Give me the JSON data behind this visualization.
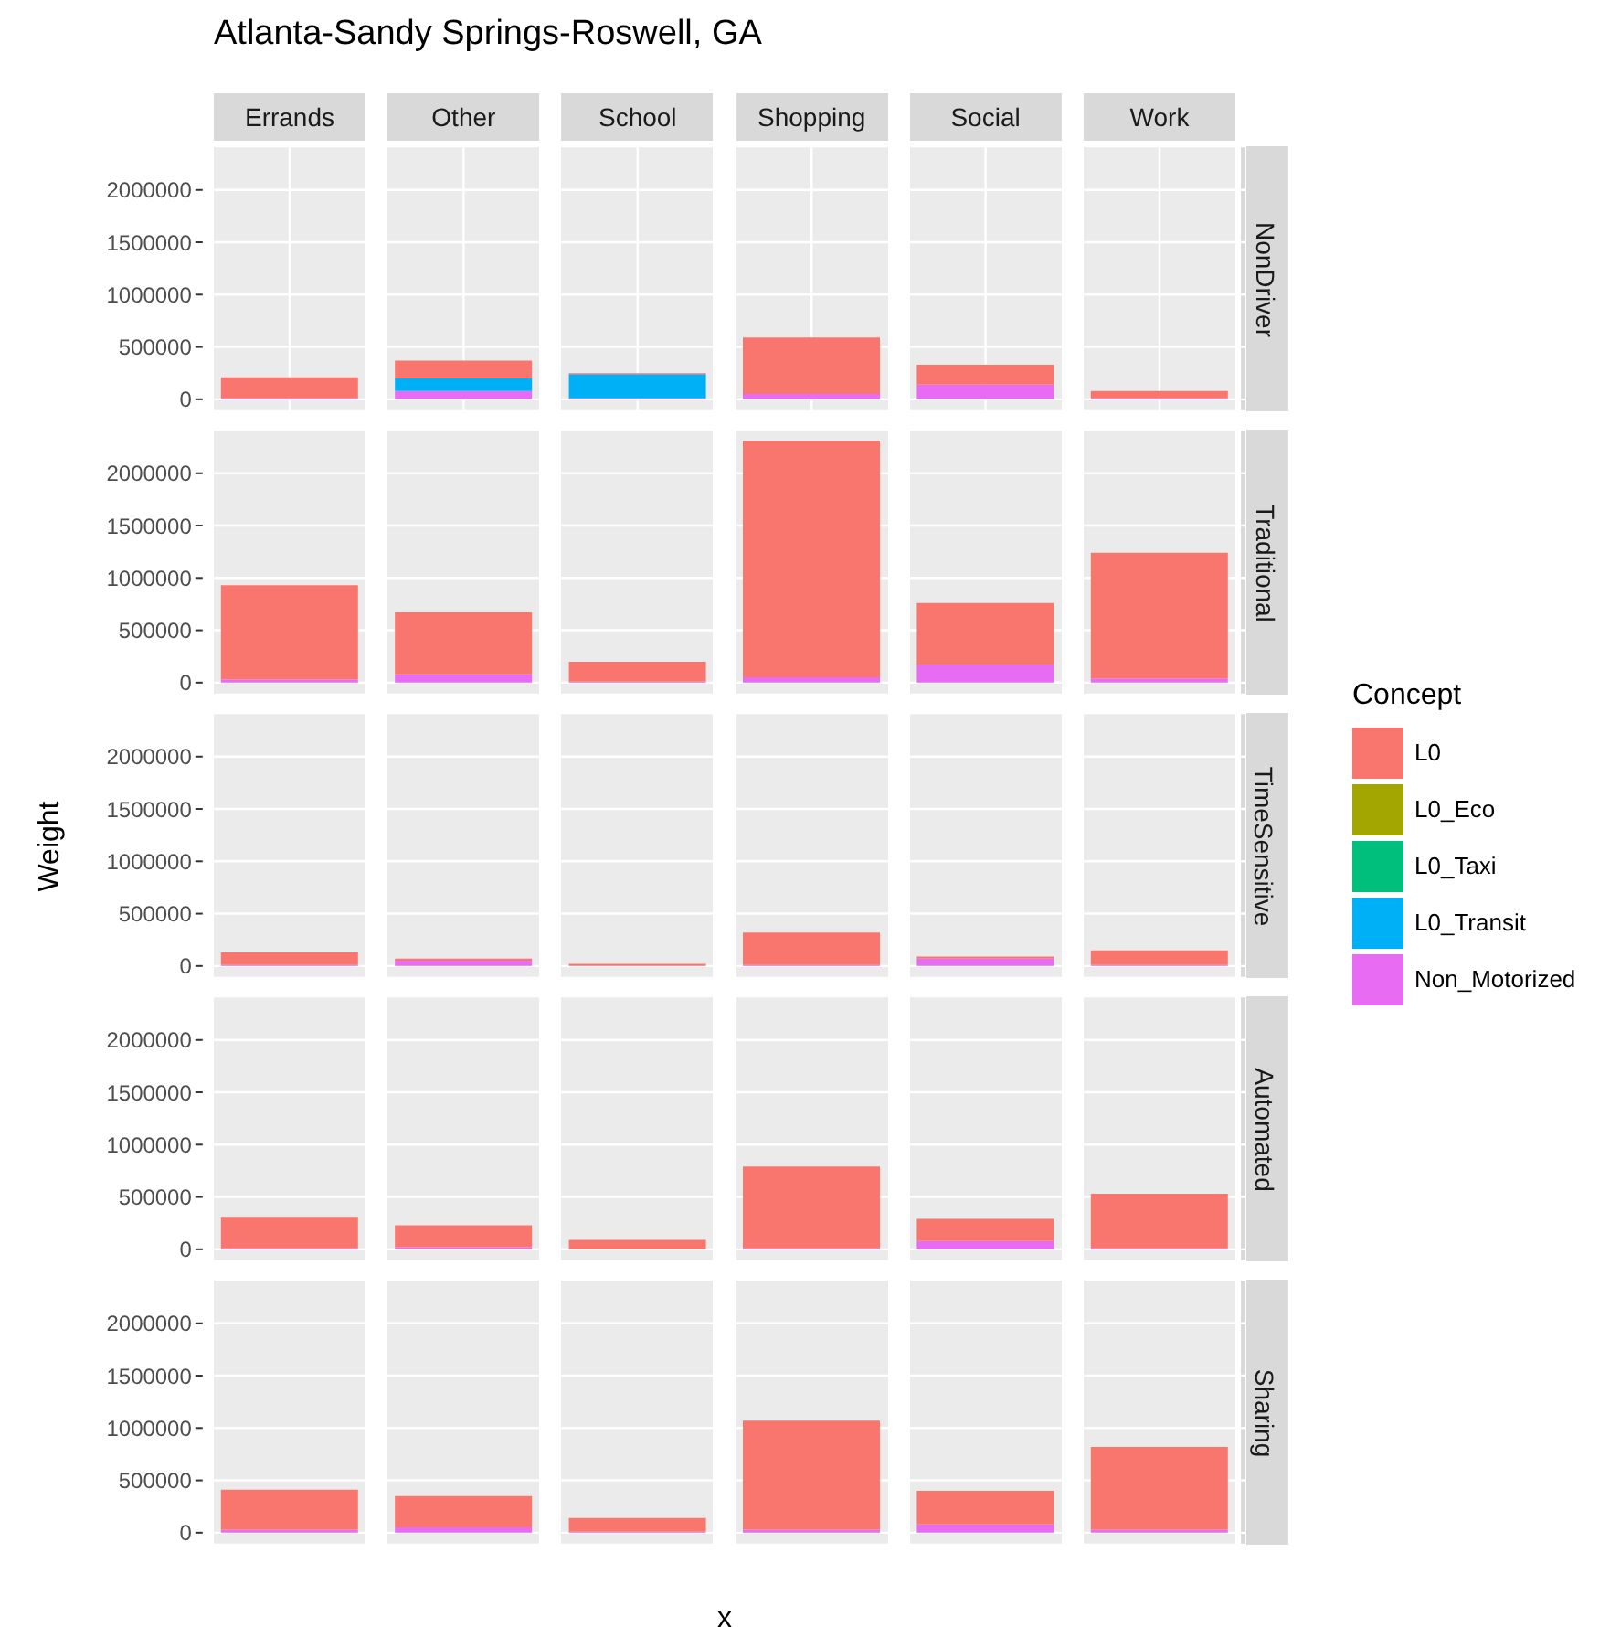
{
  "chart_data": [
    {
      "type": "bar",
      "stacked": true,
      "title": "Atlanta-Sandy Springs-Roswell, GA",
      "y2label": "NonDriver",
      "legend": "right",
      "legend_title": "Concept",
      "categories": [
        "Errands",
        "Other",
        "School",
        "Shopping",
        "Social",
        "Work"
      ],
      "ylim": [
        -115000,
        2417000
      ],
      "yticks": [
        0,
        500000,
        1000000,
        1500000,
        2000000
      ],
      "grid": true,
      "series": [
        {
          "name": "Non_Motorized",
          "color": "#e76bf3",
          "values": [
            10000,
            80000,
            10000,
            50000,
            140000,
            10000
          ]
        },
        {
          "name": "L0_Transit",
          "color": "#00b0f6",
          "values": [
            null,
            120000,
            230000,
            null,
            null,
            null
          ]
        },
        {
          "name": "L0_Taxi",
          "color": "#00bf7d",
          "values": [
            null,
            null,
            null,
            null,
            null,
            null
          ]
        },
        {
          "name": "L0_Eco",
          "color": "#a3a500",
          "values": [
            null,
            null,
            null,
            null,
            null,
            null
          ]
        },
        {
          "name": "L0",
          "color": "#f8766d",
          "values": [
            200000,
            170000,
            10000,
            540000,
            190000,
            70000
          ]
        }
      ]
    },
    {
      "type": "bar",
      "stacked": true,
      "y2label": "Traditional",
      "categories": [
        null,
        null,
        null,
        null,
        null,
        null
      ],
      "ylim": [
        -115000,
        2417000
      ],
      "yticks": [
        0,
        500000,
        1000000,
        1500000,
        2000000
      ],
      "grid": true,
      "tick_labels": "y",
      "series": [
        {
          "color": "#e76bf3",
          "values": [
            30000,
            80000,
            10000,
            50000,
            170000,
            40000
          ]
        },
        {
          "color": "#f8766d",
          "values": [
            900000,
            590000,
            190000,
            2260000,
            590000,
            1200000
          ]
        }
      ]
    },
    {
      "type": "bar",
      "stacked": true,
      "y2label": "TimeSensitive",
      "ylabel": "Weight",
      "categories": [
        null,
        null,
        null,
        null,
        null,
        null
      ],
      "ylim": [
        -115000,
        2417000
      ],
      "yticks": [
        0,
        500000,
        1000000,
        1500000,
        2000000
      ],
      "grid": true,
      "tick_labels": "y",
      "series": [
        {
          "color": "#e76bf3",
          "values": [
            10000,
            50000,
            null,
            10000,
            70000,
            10000
          ]
        },
        {
          "color": "#f8766d",
          "values": [
            120000,
            20000,
            20000,
            310000,
            20000,
            140000
          ]
        }
      ]
    },
    {
      "type": "bar",
      "stacked": true,
      "y2label": "Automated",
      "categories": [
        null,
        null,
        null,
        null,
        null,
        null
      ],
      "ylim": [
        -115000,
        2417000
      ],
      "yticks": [
        0,
        500000,
        1000000,
        1500000,
        2000000
      ],
      "grid": true,
      "tick_labels": "y",
      "series": [
        {
          "color": "#e76bf3",
          "values": [
            10000,
            20000,
            null,
            10000,
            80000,
            10000
          ]
        },
        {
          "color": "#f8766d",
          "values": [
            300000,
            210000,
            90000,
            780000,
            210000,
            520000
          ]
        }
      ]
    },
    {
      "type": "bar",
      "stacked": true,
      "y2label": "Sharing",
      "xlabel": "x",
      "categories": [
        null,
        null,
        null,
        null,
        null,
        null
      ],
      "ylim": [
        -115000,
        2417000
      ],
      "yticks": [
        0,
        500000,
        1000000,
        1500000,
        2000000
      ],
      "grid": true,
      "tick_labels": "y",
      "series": [
        {
          "color": "#e76bf3",
          "values": [
            30000,
            50000,
            10000,
            30000,
            80000,
            30000
          ]
        },
        {
          "color": "#f8766d",
          "values": [
            380000,
            300000,
            130000,
            1040000,
            320000,
            790000
          ]
        }
      ]
    }
  ]
}
